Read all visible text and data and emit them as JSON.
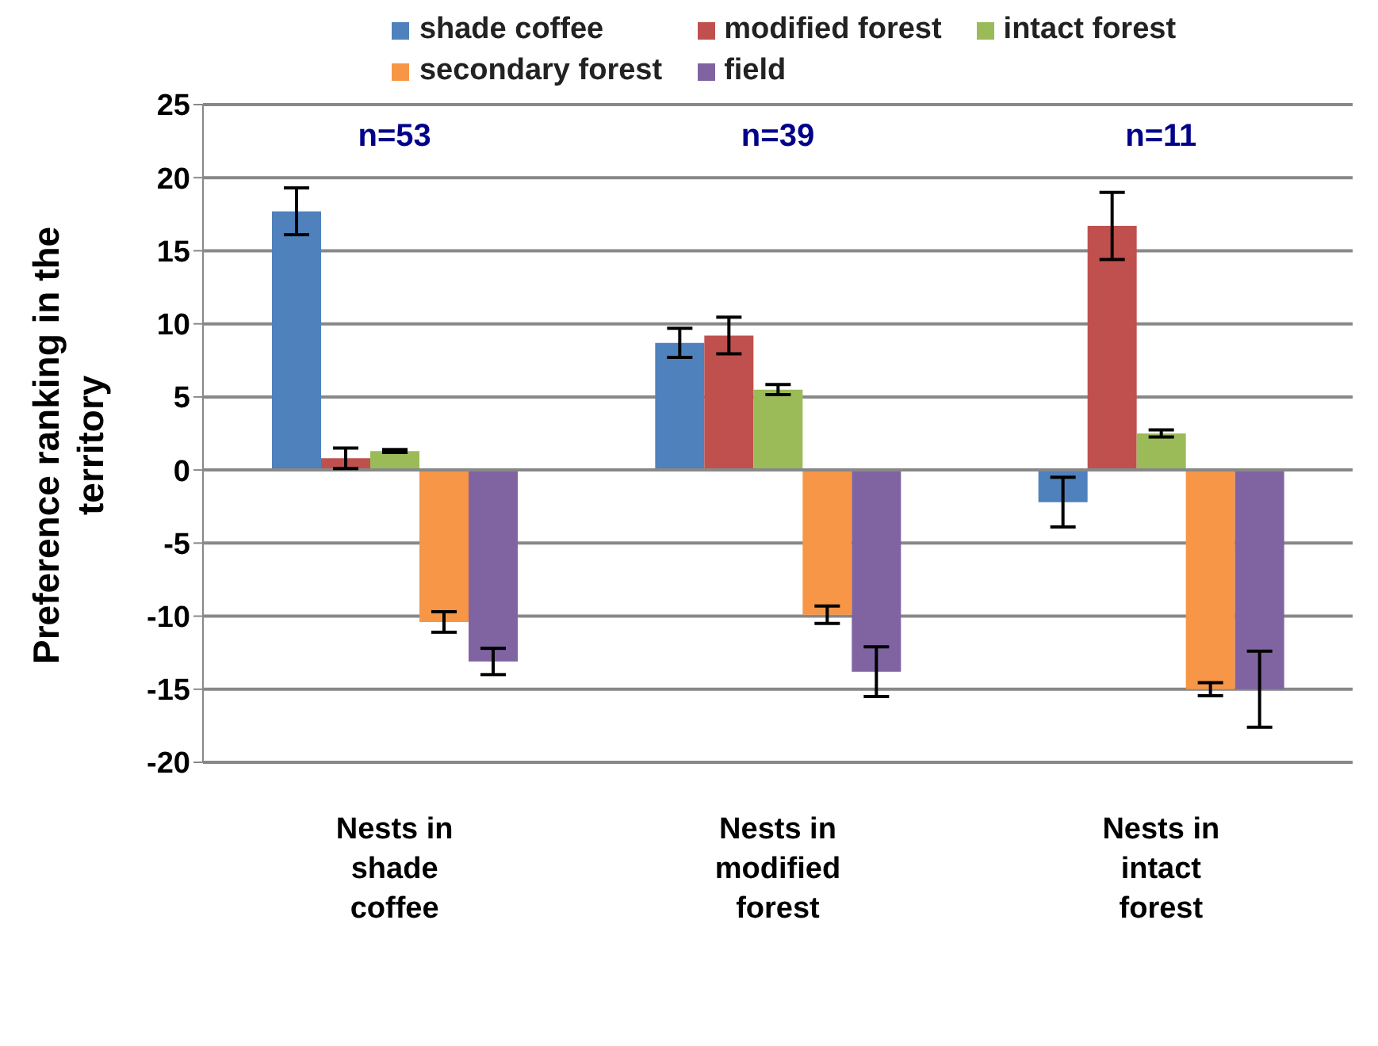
{
  "chart_data": {
    "type": "bar",
    "ylabel": "Preference ranking in the territory",
    "categories": [
      "Nests in shade coffee",
      "Nests in modified forest",
      "Nests in intact forest"
    ],
    "series": [
      {
        "name": "shade coffee",
        "color": "#4f81bd",
        "values": [
          17.7,
          8.7,
          -2.2
        ],
        "errors": [
          1.6,
          1.0,
          1.7
        ]
      },
      {
        "name": "modified forest",
        "color": "#c0504d",
        "values": [
          0.8,
          9.2,
          16.7
        ],
        "errors": [
          0.7,
          1.25,
          2.3
        ]
      },
      {
        "name": "intact forest",
        "color": "#9bbb59",
        "values": [
          1.3,
          5.5,
          2.5
        ],
        "errors": [
          0.1,
          0.35,
          0.25
        ]
      },
      {
        "name": "secondary forest",
        "color": "#f79646",
        "values": [
          -10.4,
          -9.9,
          -15.0
        ],
        "errors": [
          0.7,
          0.6,
          0.45
        ]
      },
      {
        "name": "field",
        "color": "#8064a2",
        "values": [
          -13.1,
          -13.8,
          -15.0
        ],
        "errors": [
          0.9,
          1.7,
          2.6
        ]
      }
    ],
    "ylim": [
      -20,
      25
    ],
    "yticks": [
      -20,
      -15,
      -10,
      -5,
      0,
      5,
      10,
      15,
      20,
      25
    ],
    "grid": "y",
    "legend": "top",
    "annotations": [
      "n=53",
      "n=39",
      "n=11"
    ]
  }
}
